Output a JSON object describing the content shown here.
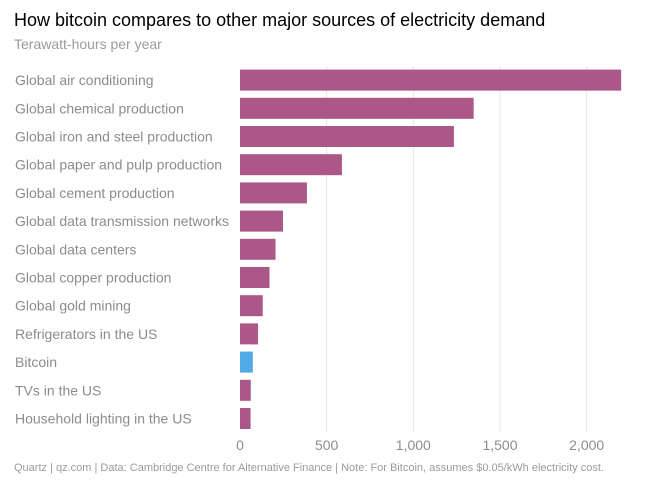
{
  "chart_data": {
    "type": "bar",
    "orientation": "horizontal",
    "title": "How bitcoin compares to other major sources of electricity demand",
    "subtitle": "Terawatt-hours per year",
    "categories": [
      "Global air conditioning",
      "Global chemical production",
      "Global iron and steel production",
      "Global paper and pulp production",
      "Global cement production",
      "Global data transmission networks",
      "Global data centers",
      "Global copper production",
      "Global gold mining",
      "Refrigerators in the US",
      "Bitcoin",
      "TVs in the US",
      "Household lighting in the US"
    ],
    "values": [
      2199,
      1348,
      1234,
      588,
      386,
      248,
      205,
      170,
      131,
      104,
      74,
      62,
      61
    ],
    "highlight": "Bitcoin",
    "xlim": [
      0,
      2250
    ],
    "xticks": [
      0,
      500,
      1000,
      1500,
      2000
    ],
    "xtick_labels": [
      "0",
      "500",
      "1,000",
      "1,500",
      "2,000"
    ],
    "xlabel": "",
    "ylabel": "",
    "grid": true,
    "colors": {
      "bar": "#ab5787",
      "highlight": "#51aae8"
    },
    "footer": "Quartz | qz.com | Data: Cambridge Centre for Alternative Finance | Note: For Bitcoin, assumes $0.05/kWh electricity cost."
  }
}
